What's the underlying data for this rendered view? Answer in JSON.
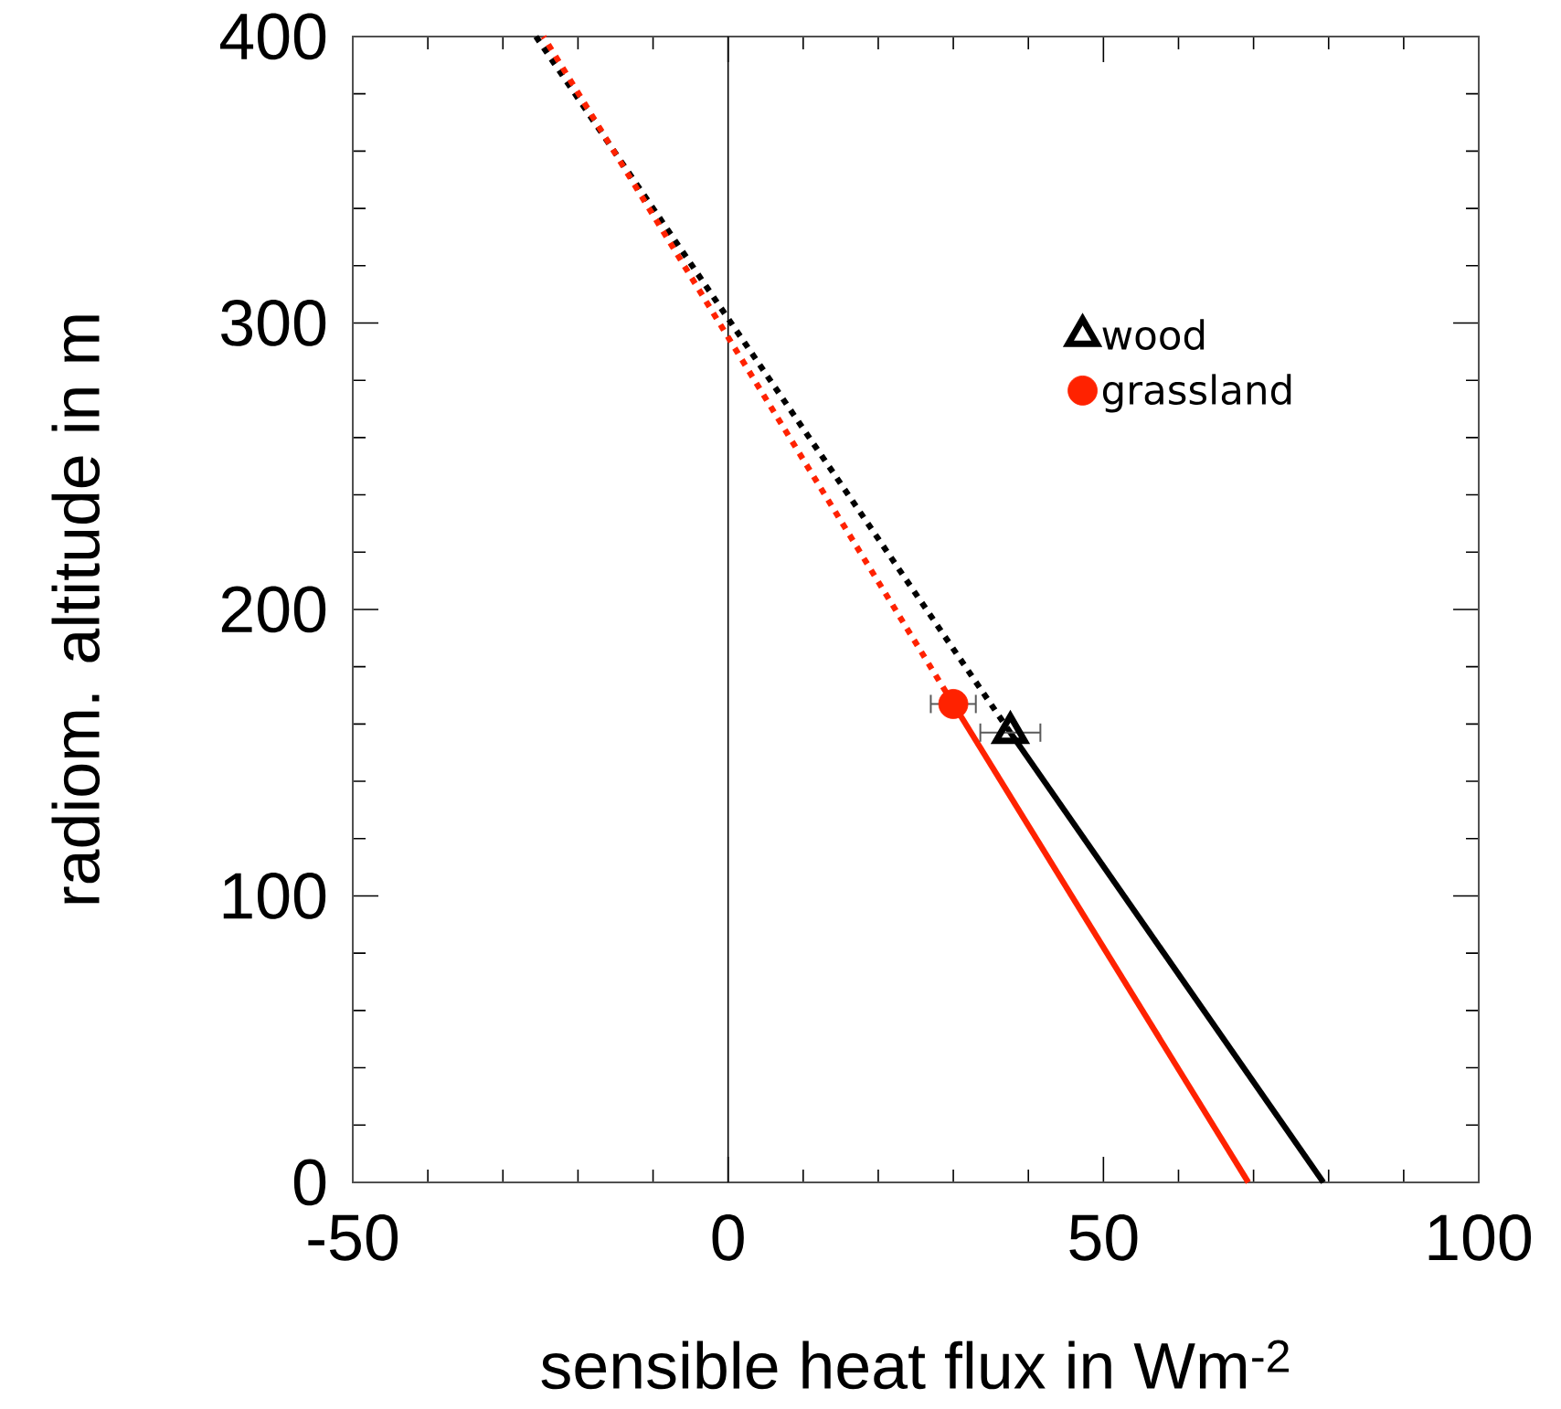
{
  "chart_data": {
    "type": "line",
    "xlabel": "sensible heat flux in Wm$^{-2}$",
    "ylabel": "radiom. altitude in m",
    "xlim": [
      -50,
      100
    ],
    "xticks": [
      -50,
      0,
      50,
      100
    ],
    "ylim": [
      0,
      400
    ],
    "yticks": [
      0,
      100,
      200,
      300,
      400
    ],
    "grid": false,
    "legend": "top right",
    "ref_lines": [
      {
        "axis": "x",
        "value": 0,
        "color": "#000000"
      }
    ],
    "series": [
      {
        "color": "#000000",
        "x": [
          79.3,
          37.6
        ],
        "values": [
          0,
          157
        ],
        "line_style": "solid",
        "marker": "none"
      },
      {
        "color": "#000000",
        "x": [
          37.6,
          -25.6
        ],
        "values": [
          157,
          400
        ],
        "line_style": "dotted",
        "marker": "none"
      },
      {
        "color": "#ff2200",
        "x": [
          69.3,
          30
        ],
        "values": [
          0,
          167
        ],
        "line_style": "solid",
        "marker": "none"
      },
      {
        "color": "#ff2200",
        "x": [
          30,
          -24.6
        ],
        "values": [
          167,
          400
        ],
        "line_style": "dotted",
        "marker": "none"
      },
      {
        "type": "scatter",
        "name": "wood",
        "color": "#000000",
        "x": [
          37.6
        ],
        "values": [
          157
        ],
        "xerrors": [
          4
        ],
        "marker": "triangle"
      },
      {
        "type": "scatter",
        "name": "grassland",
        "color": "#ff2200",
        "x": [
          30
        ],
        "values": [
          167
        ],
        "xerrors": [
          3
        ],
        "marker": "circle"
      }
    ]
  }
}
